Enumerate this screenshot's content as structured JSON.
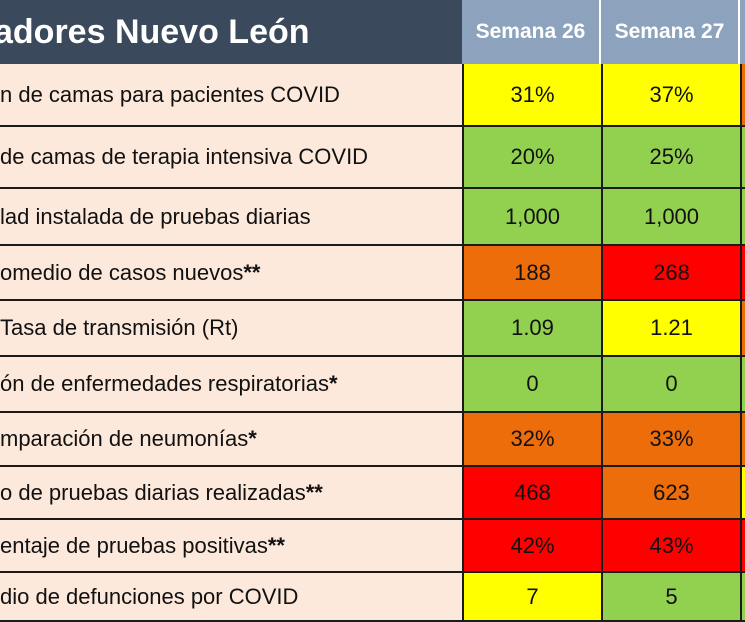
{
  "header": {
    "title": "adores Nuevo León",
    "weeks": [
      "Semana 26",
      "Semana 27"
    ]
  },
  "colors": {
    "yellow": "#ffff00",
    "green": "#92d050",
    "orange": "#ed6d0b",
    "red": "#ff0000",
    "label_bg": "#fde9dc",
    "header_dark": "#3a4a5c",
    "header_light": "#8da3bd"
  },
  "rows": [
    {
      "label": "n de camas para pacientes COVID",
      "stars": "",
      "values": [
        "31%",
        "37%"
      ],
      "colors": [
        "yellow",
        "yellow"
      ],
      "next": "orange"
    },
    {
      "label": "de camas de terapia intensiva COVID",
      "stars": "",
      "values": [
        "20%",
        "25%"
      ],
      "colors": [
        "green",
        "green"
      ],
      "next": "green"
    },
    {
      "label": "lad instalada de pruebas diarias",
      "stars": "",
      "values": [
        "1,000",
        "1,000"
      ],
      "colors": [
        "green",
        "green"
      ],
      "next": "green"
    },
    {
      "label": "omedio de casos nuevos",
      "stars": "**",
      "values": [
        "188",
        "268"
      ],
      "colors": [
        "orange",
        "red"
      ],
      "next": "red"
    },
    {
      "label": "Tasa de transmisión (Rt)",
      "stars": "",
      "values": [
        "1.09",
        "1.21"
      ],
      "colors": [
        "green",
        "yellow"
      ],
      "next": "orange"
    },
    {
      "label": "ón de enfermedades respiratorias",
      "stars": "*",
      "values": [
        "0",
        "0"
      ],
      "colors": [
        "green",
        "green"
      ],
      "next": "green"
    },
    {
      "label": "mparación de neumonías",
      "stars": "*",
      "values": [
        "32%",
        "33%"
      ],
      "colors": [
        "orange",
        "orange"
      ],
      "next": "orange"
    },
    {
      "label": "o de pruebas diarias realizadas",
      "stars": "**",
      "values": [
        "468",
        "623"
      ],
      "colors": [
        "red",
        "orange"
      ],
      "next": "yellow"
    },
    {
      "label": "entaje de pruebas positivas",
      "stars": "**",
      "values": [
        "42%",
        "43%"
      ],
      "colors": [
        "red",
        "red"
      ],
      "next": "red"
    },
    {
      "label": "dio de defunciones por COVID",
      "stars": "",
      "values": [
        "7",
        "5"
      ],
      "colors": [
        "yellow",
        "green"
      ],
      "next": "green"
    }
  ]
}
